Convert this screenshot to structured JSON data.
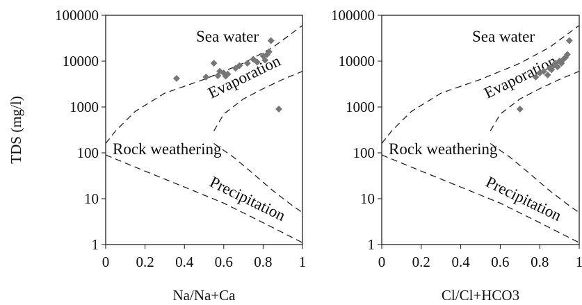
{
  "chart_data": [
    {
      "type": "scatter",
      "title": "",
      "xlabel": "Na/Na+Ca",
      "ylabel": "TDS (mg/l)",
      "xlim": [
        0,
        1
      ],
      "ylim": [
        1,
        100000
      ],
      "y_scale": "log",
      "grid": false,
      "x_ticks": [
        "0",
        "0.2",
        "0.4",
        "0.6",
        "0.8",
        "1"
      ],
      "y_ticks": [
        "1",
        "10",
        "100",
        "1000",
        "10000",
        "100000"
      ],
      "annotations": [
        "Sea water",
        "Evaporation",
        "Rock weathering",
        "Precipitation"
      ],
      "points": [
        {
          "x": 0.36,
          "y": 4200
        },
        {
          "x": 0.51,
          "y": 4500
        },
        {
          "x": 0.55,
          "y": 9000
        },
        {
          "x": 0.57,
          "y": 4800
        },
        {
          "x": 0.58,
          "y": 6000
        },
        {
          "x": 0.6,
          "y": 5500
        },
        {
          "x": 0.61,
          "y": 4700
        },
        {
          "x": 0.62,
          "y": 5200
        },
        {
          "x": 0.66,
          "y": 7000
        },
        {
          "x": 0.68,
          "y": 8000
        },
        {
          "x": 0.72,
          "y": 9000
        },
        {
          "x": 0.75,
          "y": 11000
        },
        {
          "x": 0.77,
          "y": 9500
        },
        {
          "x": 0.8,
          "y": 13000
        },
        {
          "x": 0.81,
          "y": 10500
        },
        {
          "x": 0.82,
          "y": 14000
        },
        {
          "x": 0.83,
          "y": 16000
        },
        {
          "x": 0.84,
          "y": 28000
        },
        {
          "x": 0.88,
          "y": 900
        }
      ]
    },
    {
      "type": "scatter",
      "title": "",
      "xlabel": "Cl/Cl+HCO3",
      "ylabel": "",
      "xlim": [
        0,
        1
      ],
      "ylim": [
        1,
        100000
      ],
      "y_scale": "log",
      "grid": false,
      "x_ticks": [
        "0",
        "0.2",
        "0.4",
        "0.6",
        "0.8",
        "1"
      ],
      "y_ticks": [
        "1",
        "10",
        "100",
        "1000",
        "10000",
        "100000"
      ],
      "annotations": [
        "Sea water",
        "Evaporation",
        "Rock weathering",
        "Precipitation"
      ],
      "points": [
        {
          "x": 0.7,
          "y": 900
        },
        {
          "x": 0.78,
          "y": 4500
        },
        {
          "x": 0.8,
          "y": 5500
        },
        {
          "x": 0.82,
          "y": 6000
        },
        {
          "x": 0.84,
          "y": 5000
        },
        {
          "x": 0.85,
          "y": 7000
        },
        {
          "x": 0.86,
          "y": 6500
        },
        {
          "x": 0.87,
          "y": 8000
        },
        {
          "x": 0.88,
          "y": 9000
        },
        {
          "x": 0.89,
          "y": 7500
        },
        {
          "x": 0.9,
          "y": 10000
        },
        {
          "x": 0.91,
          "y": 9000
        },
        {
          "x": 0.92,
          "y": 11000
        },
        {
          "x": 0.93,
          "y": 12000
        },
        {
          "x": 0.94,
          "y": 14000
        },
        {
          "x": 0.95,
          "y": 28000
        }
      ]
    }
  ]
}
